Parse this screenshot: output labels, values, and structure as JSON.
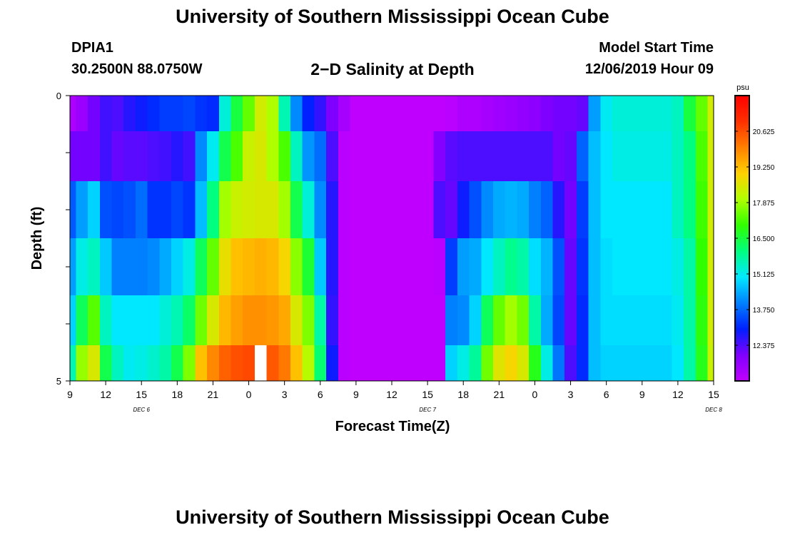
{
  "titles": {
    "top": "University of Southern Mississippi Ocean Cube",
    "bottom": "University of Southern Mississippi Ocean Cube"
  },
  "station": {
    "id": "DPIA1",
    "coords": "30.2500N 88.0750W"
  },
  "plot_title": "2−D Salinity at Depth",
  "model": {
    "label": "Model Start Time",
    "time": "12/06/2019 Hour 09"
  },
  "colorbar": {
    "unit": "psu",
    "ticks": [
      "20.625",
      "19.250",
      "17.875",
      "16.500",
      "15.125",
      "13.750",
      "12.375"
    ],
    "colormap": [
      "#c000ff",
      "#8000ff",
      "#0020ff",
      "#0080ff",
      "#00e8ff",
      "#00ff80",
      "#30ff00",
      "#b0ff00",
      "#ffd000",
      "#ff8000",
      "#ff3000",
      "#ff0000"
    ]
  },
  "chart_data": {
    "type": "heatmap",
    "xlabel": "Forecast Time(Z)",
    "ylabel": "Depth (ft)",
    "x_tick_labels": [
      "9",
      "12",
      "15",
      "18",
      "21",
      "0",
      "3",
      "6",
      "9",
      "12",
      "15",
      "18",
      "21",
      "0",
      "3",
      "6",
      "9",
      "12",
      "15"
    ],
    "y_tick_labels": [
      "0",
      "5"
    ],
    "date_labels": [
      "DEC 6",
      "DEC 7",
      "DEC 8"
    ],
    "x_range_hours": [
      0,
      54
    ],
    "y_range_ft": [
      0,
      5
    ],
    "color_range_psu": [
      11.0,
      22.0
    ],
    "depth_layers_ft": [
      0.25,
      1.0,
      2.0,
      3.0,
      4.0,
      4.75
    ],
    "salinity_psu": [
      [
        11.3,
        11.6,
        12.1,
        12.5,
        12.4,
        12.7,
        12.9,
        13.1,
        13.3,
        13.3,
        13.4,
        13.2,
        13.1,
        15.3,
        16.5,
        17.4,
        18.4,
        18.0,
        15.6,
        14.1,
        13.0,
        12.6,
        12.0,
        11.4,
        10.6,
        10.3,
        10.3,
        10.3,
        10.3,
        10.4,
        10.7,
        10.9,
        11.1,
        11.3,
        11.3,
        11.4,
        11.5,
        11.6,
        11.7,
        11.8,
        12.0,
        12.1,
        12.1,
        12.2,
        14.3,
        15.1,
        15.3,
        15.3,
        15.3,
        15.3,
        15.3,
        15.5,
        16.5,
        17.4,
        18.4
      ],
      [
        12.1,
        12.1,
        12.1,
        12.5,
        12.2,
        12.3,
        12.3,
        12.4,
        12.5,
        12.7,
        12.5,
        14.1,
        15.1,
        16.4,
        17.2,
        18.3,
        18.5,
        18.0,
        17.2,
        15.5,
        14.2,
        13.8,
        12.4,
        11.1,
        10.6,
        10.3,
        10.3,
        10.3,
        10.3,
        10.4,
        10.6,
        11.9,
        12.3,
        12.4,
        12.4,
        12.4,
        12.4,
        12.4,
        12.4,
        12.4,
        12.4,
        12.1,
        12.2,
        13.7,
        14.6,
        15.0,
        15.2,
        15.2,
        15.2,
        15.2,
        15.2,
        15.5,
        16.0,
        17.2,
        18.4
      ],
      [
        13.6,
        14.3,
        14.8,
        13.5,
        13.4,
        13.5,
        13.8,
        13.2,
        13.2,
        13.4,
        13.2,
        14.6,
        16.0,
        17.9,
        18.3,
        18.4,
        18.5,
        18.5,
        17.9,
        16.4,
        15.3,
        14.1,
        12.7,
        11.1,
        10.6,
        10.3,
        10.3,
        10.3,
        10.3,
        10.4,
        10.6,
        12.4,
        12.2,
        12.9,
        13.5,
        14.1,
        14.4,
        14.5,
        14.4,
        14.0,
        13.7,
        12.7,
        12.1,
        13.3,
        14.6,
        15.0,
        15.0,
        15.0,
        15.0,
        15.0,
        15.0,
        15.5,
        16.0,
        17.1,
        18.4
      ],
      [
        14.3,
        15.2,
        15.5,
        14.7,
        14.0,
        14.0,
        14.0,
        14.1,
        14.4,
        14.8,
        15.2,
        16.3,
        17.4,
        18.7,
        19.2,
        19.3,
        19.4,
        19.3,
        18.9,
        17.7,
        16.6,
        14.7,
        12.7,
        11.1,
        10.6,
        10.3,
        10.3,
        10.3,
        10.3,
        10.4,
        10.6,
        11.1,
        13.3,
        14.3,
        14.4,
        15.0,
        15.5,
        15.9,
        15.7,
        14.9,
        14.5,
        13.5,
        12.2,
        13.2,
        14.6,
        14.9,
        15.0,
        15.0,
        15.0,
        15.0,
        15.0,
        15.2,
        15.7,
        17.0,
        18.4
      ],
      [
        14.8,
        16.3,
        17.3,
        15.5,
        15.0,
        15.0,
        15.0,
        15.0,
        15.3,
        15.6,
        16.2,
        17.5,
        18.5,
        19.3,
        19.6,
        19.8,
        19.8,
        19.7,
        19.5,
        18.5,
        17.6,
        15.7,
        12.6,
        11.1,
        10.6,
        10.3,
        10.3,
        10.3,
        10.3,
        10.4,
        10.6,
        11.0,
        14.0,
        14.1,
        14.8,
        16.3,
        17.4,
        17.9,
        17.5,
        15.7,
        14.4,
        13.4,
        12.2,
        13.1,
        14.6,
        14.9,
        14.9,
        14.9,
        14.9,
        14.9,
        14.9,
        15.1,
        15.7,
        16.9,
        18.4
      ],
      [
        15.6,
        17.8,
        18.5,
        16.4,
        15.5,
        15.1,
        15.2,
        15.4,
        15.7,
        16.4,
        17.6,
        19.2,
        19.9,
        20.4,
        20.6,
        20.7,
        20.5,
        20.5,
        20.1,
        19.2,
        18.1,
        16.1,
        12.9,
        11.1,
        10.6,
        10.3,
        10.3,
        10.3,
        10.3,
        10.4,
        10.6,
        11.0,
        14.8,
        15.2,
        15.8,
        17.5,
        18.6,
        18.9,
        18.5,
        16.8,
        15.2,
        13.9,
        12.4,
        13.1,
        14.6,
        14.8,
        14.8,
        14.8,
        14.8,
        14.8,
        14.8,
        15.0,
        15.7,
        16.8,
        18.3
      ]
    ],
    "missing_cells": [
      {
        "layer": 5,
        "hour": 16
      }
    ]
  }
}
